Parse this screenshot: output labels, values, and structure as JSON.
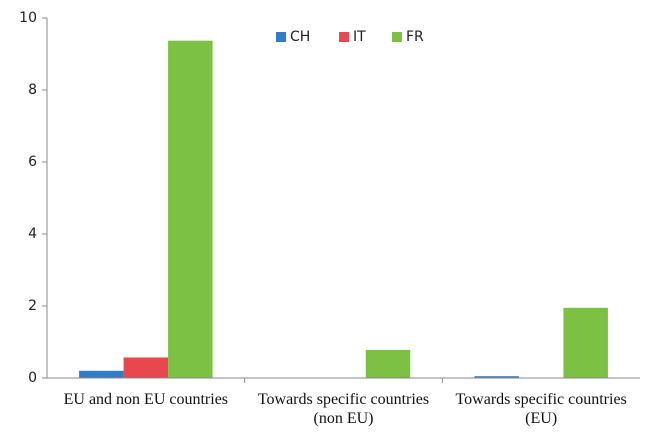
{
  "chart_data": {
    "type": "bar",
    "categories": [
      "EU and non EU countries",
      "Towards specific countries (non EU)",
      "Towards specific countries (EU)"
    ],
    "series": [
      {
        "name": "CH",
        "color": "#2f7cc9",
        "values": [
          0.2,
          0,
          0.05
        ]
      },
      {
        "name": "IT",
        "color": "#e8484d",
        "values": [
          0.57,
          0,
          0
        ]
      },
      {
        "name": "FR",
        "color": "#7cc144",
        "values": [
          9.37,
          0.78,
          1.95
        ]
      }
    ],
    "ylim": [
      0,
      10
    ],
    "yticks": [
      0,
      2,
      4,
      6,
      8,
      10
    ],
    "grid": false
  }
}
